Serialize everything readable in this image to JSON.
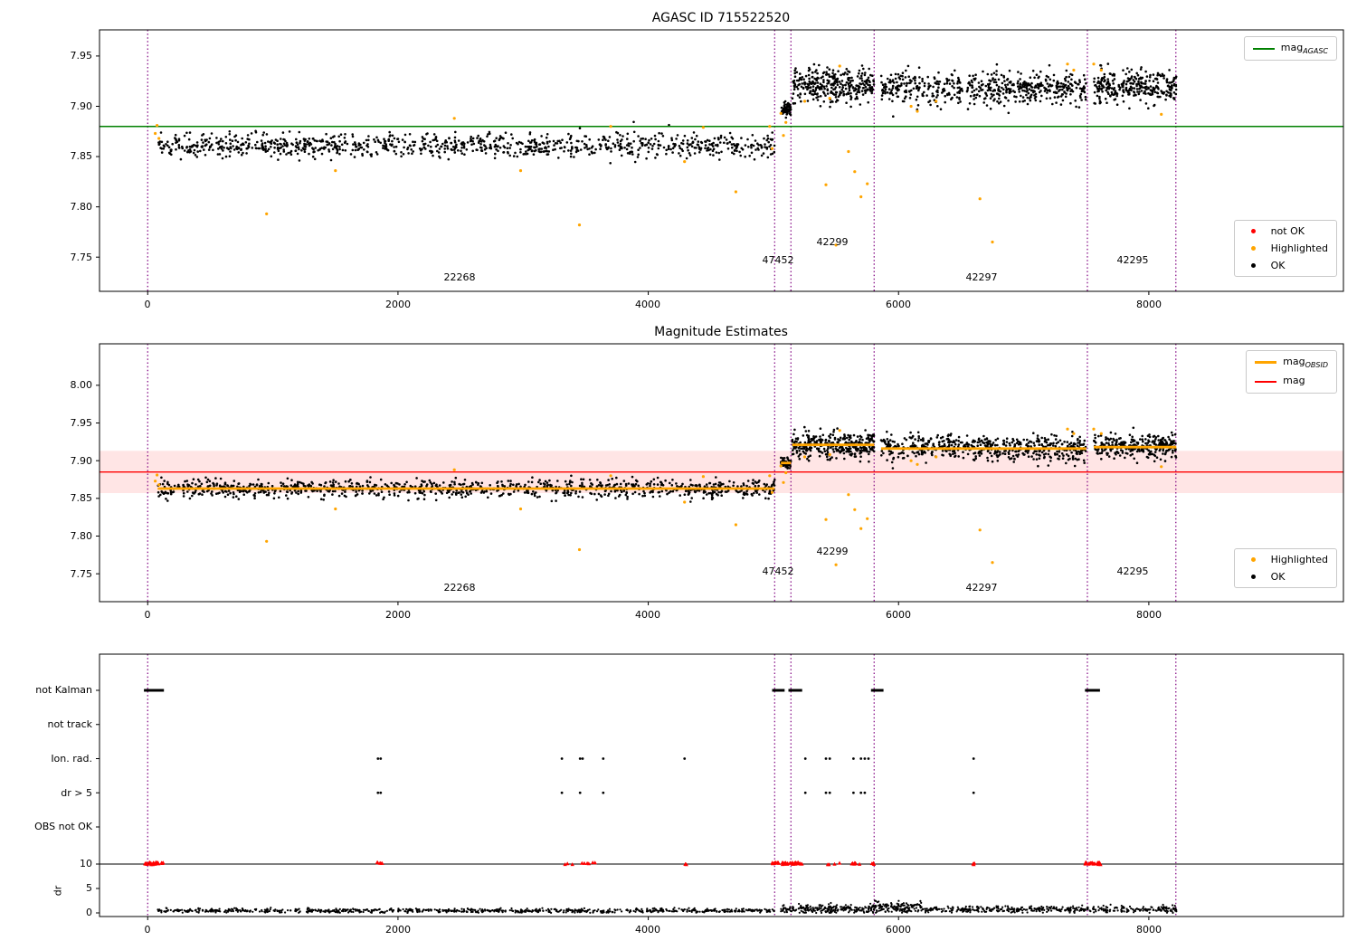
{
  "figure": {
    "top_title": "AGASC ID 715522520",
    "middle_title": "Magnitude Estimates"
  },
  "colors": {
    "ok": "#000000",
    "highlighted": "#ffa500",
    "not_ok": "#ff0000",
    "mag_agasc_line": "#008000",
    "mag_obsid_line": "#ffa500",
    "mag_line": "#ff0000",
    "obsid_boundary": "#800080"
  },
  "legends": {
    "top_line": {
      "main": "mag",
      "sub": "AGASC"
    },
    "top_markers": [
      "not OK",
      "Highlighted",
      "OK"
    ],
    "middle_line1": {
      "main": "mag",
      "sub": "OBSID"
    },
    "middle_line2": {
      "main": "mag",
      "sub": ""
    },
    "middle_markers": [
      "Highlighted",
      "OK"
    ]
  },
  "chart_data": [
    {
      "type": "scatter",
      "title": "AGASC ID 715522520",
      "xlim": [
        -385,
        9555
      ],
      "ylim": [
        7.716,
        7.976
      ],
      "xticks": [
        "0",
        "2000",
        "4000",
        "6000",
        "8000"
      ],
      "xtick_values": [
        0,
        2000,
        4000,
        6000,
        8000
      ],
      "yticks": [
        "7.75",
        "7.80",
        "7.85",
        "7.90",
        "7.95"
      ],
      "ytick_values": [
        7.75,
        7.8,
        7.85,
        7.9,
        7.95
      ],
      "mag_agasc": 7.88,
      "obsid_boundaries": [
        0,
        5010,
        5140,
        5805,
        7509,
        8216
      ],
      "obsid_labels": [
        {
          "text": "22268",
          "x": 2493
        },
        {
          "text": "47452",
          "x": 5036
        },
        {
          "text": "42299",
          "x": 5470
        },
        {
          "text": "42297",
          "x": 6662
        },
        {
          "text": "42295",
          "x": 7869
        }
      ],
      "ok_segments": [
        {
          "x0": 80,
          "x1": 5010,
          "mean": 7.861,
          "sd": 0.006,
          "n": 1000
        },
        {
          "x0": 5060,
          "x1": 5140,
          "mean": 7.897,
          "sd": 0.003,
          "n": 60
        },
        {
          "x0": 5150,
          "x1": 5805,
          "mean": 7.921,
          "sd": 0.009,
          "n": 330
        },
        {
          "x0": 5860,
          "x1": 7500,
          "mean": 7.918,
          "sd": 0.008,
          "n": 550
        },
        {
          "x0": 7560,
          "x1": 8220,
          "mean": 7.92,
          "sd": 0.008,
          "n": 300
        }
      ],
      "highlighted": [
        [
          60,
          7.873
        ],
        [
          75,
          7.881
        ],
        [
          90,
          7.868
        ],
        [
          950,
          7.793
        ],
        [
          1500,
          7.836
        ],
        [
          2450,
          7.888
        ],
        [
          2980,
          7.836
        ],
        [
          3450,
          7.782
        ],
        [
          3700,
          7.88
        ],
        [
          4290,
          7.845
        ],
        [
          4440,
          7.879
        ],
        [
          4700,
          7.815
        ],
        [
          4970,
          7.88
        ],
        [
          4990,
          7.858
        ],
        [
          5060,
          7.893
        ],
        [
          5080,
          7.871
        ],
        [
          5100,
          7.884
        ],
        [
          5250,
          7.905
        ],
        [
          5420,
          7.822
        ],
        [
          5450,
          7.908
        ],
        [
          5500,
          7.762
        ],
        [
          5530,
          7.94
        ],
        [
          5600,
          7.855
        ],
        [
          5650,
          7.835
        ],
        [
          5700,
          7.81
        ],
        [
          5750,
          7.823
        ],
        [
          6100,
          7.9
        ],
        [
          6150,
          7.895
        ],
        [
          6300,
          7.905
        ],
        [
          6650,
          7.808
        ],
        [
          6750,
          7.765
        ],
        [
          7350,
          7.942
        ],
        [
          7400,
          7.936
        ],
        [
          7560,
          7.942
        ],
        [
          7620,
          7.936
        ],
        [
          8100,
          7.892
        ]
      ],
      "not_ok": []
    },
    {
      "type": "scatter",
      "title": "Magnitude Estimates",
      "xlim": [
        -385,
        9555
      ],
      "ylim": [
        7.713,
        8.055
      ],
      "xticks": [
        "0",
        "2000",
        "4000",
        "6000",
        "8000"
      ],
      "xtick_values": [
        0,
        2000,
        4000,
        6000,
        8000
      ],
      "yticks": [
        "7.75",
        "7.80",
        "7.85",
        "7.90",
        "7.95",
        "8.00"
      ],
      "ytick_values": [
        7.75,
        7.8,
        7.85,
        7.9,
        7.95,
        8.0
      ],
      "mag": 7.885,
      "mag_band": [
        7.857,
        7.913
      ],
      "mag_obsid_segments": [
        [
          80,
          5010,
          7.863
        ],
        [
          5060,
          5140,
          7.897
        ],
        [
          5150,
          5805,
          7.921
        ],
        [
          5860,
          7500,
          7.916
        ],
        [
          7560,
          8220,
          7.918
        ]
      ],
      "obsid_boundaries": [
        0,
        5010,
        5140,
        5805,
        7509,
        8216
      ],
      "obsid_labels": [
        {
          "text": "22268",
          "x": 2493
        },
        {
          "text": "47452",
          "x": 5036
        },
        {
          "text": "42299",
          "x": 5470
        },
        {
          "text": "42297",
          "x": 6662
        },
        {
          "text": "42295",
          "x": 7869
        }
      ],
      "ok_segments": [
        {
          "x0": 80,
          "x1": 5010,
          "mean": 7.863,
          "sd": 0.006,
          "n": 1000
        },
        {
          "x0": 5060,
          "x1": 5140,
          "mean": 7.897,
          "sd": 0.003,
          "n": 60
        },
        {
          "x0": 5150,
          "x1": 5805,
          "mean": 7.921,
          "sd": 0.009,
          "n": 330
        },
        {
          "x0": 5860,
          "x1": 7500,
          "mean": 7.917,
          "sd": 0.008,
          "n": 550
        },
        {
          "x0": 7560,
          "x1": 8220,
          "mean": 7.919,
          "sd": 0.008,
          "n": 300
        }
      ],
      "highlighted": [
        [
          60,
          7.873
        ],
        [
          75,
          7.881
        ],
        [
          90,
          7.868
        ],
        [
          950,
          7.793
        ],
        [
          1500,
          7.836
        ],
        [
          2450,
          7.888
        ],
        [
          2980,
          7.836
        ],
        [
          3450,
          7.782
        ],
        [
          3700,
          7.88
        ],
        [
          4290,
          7.845
        ],
        [
          4440,
          7.879
        ],
        [
          4700,
          7.815
        ],
        [
          4970,
          7.88
        ],
        [
          4990,
          7.858
        ],
        [
          5060,
          7.893
        ],
        [
          5080,
          7.871
        ],
        [
          5100,
          7.884
        ],
        [
          5250,
          7.905
        ],
        [
          5420,
          7.822
        ],
        [
          5450,
          7.908
        ],
        [
          5500,
          7.762
        ],
        [
          5530,
          7.94
        ],
        [
          5600,
          7.855
        ],
        [
          5650,
          7.835
        ],
        [
          5700,
          7.81
        ],
        [
          5750,
          7.823
        ],
        [
          6100,
          7.9
        ],
        [
          6150,
          7.895
        ],
        [
          6300,
          7.905
        ],
        [
          6650,
          7.808
        ],
        [
          6750,
          7.765
        ],
        [
          7350,
          7.942
        ],
        [
          7400,
          7.936
        ],
        [
          7560,
          7.942
        ],
        [
          7620,
          7.936
        ],
        [
          8100,
          7.892
        ]
      ],
      "not_ok": []
    },
    {
      "type": "flags-and-dr",
      "xlim": [
        -385,
        9555
      ],
      "xticks": [
        "0",
        "2000",
        "4000",
        "6000",
        "8000"
      ],
      "xtick_values": [
        0,
        2000,
        4000,
        6000,
        8000
      ],
      "rows": [
        "not Kalman",
        "not track",
        "Ion. rad.",
        "dr > 5",
        "OBS not OK"
      ],
      "dr_label": "dr",
      "dr_ticks": [
        "10",
        "5",
        "0"
      ],
      "dr_tick_values": [
        10,
        5,
        0
      ],
      "dr_limit_line": 10,
      "obsid_boundaries": [
        0,
        5010,
        5140,
        5805,
        7509,
        8216
      ],
      "not_kalman_ranges": [
        [
          -30,
          130
        ],
        [
          4990,
          5090
        ],
        [
          5120,
          5230
        ],
        [
          5780,
          5880
        ],
        [
          7490,
          7610
        ]
      ],
      "not_track_x": [],
      "ion_rad_x": [
        1840,
        1862,
        3310,
        3455,
        3475,
        3640,
        4290,
        5255,
        5420,
        5450,
        5640,
        5700,
        5730,
        5760,
        6600
      ],
      "dr_gt5_x": [
        1840,
        1862,
        3310,
        3455,
        3640,
        5255,
        5420,
        5450,
        5640,
        5700,
        5730,
        6600
      ],
      "obs_not_ok_x": [],
      "dr_segments": [
        {
          "x0": 80,
          "x1": 5010,
          "mean": 0.45,
          "sd": 0.22,
          "n": 800
        },
        {
          "x0": 5060,
          "x1": 5805,
          "mean": 0.8,
          "sd": 0.45,
          "n": 220
        },
        {
          "x0": 5805,
          "x1": 6200,
          "mean": 1.2,
          "sd": 0.6,
          "n": 140
        },
        {
          "x0": 6200,
          "x1": 8220,
          "mean": 0.7,
          "sd": 0.35,
          "n": 420
        }
      ],
      "dr_clipped_ranges": [
        [
          -30,
          130,
          26
        ],
        [
          1830,
          1875,
          5
        ],
        [
          3300,
          3660,
          9
        ],
        [
          4280,
          4310,
          3
        ],
        [
          4990,
          5230,
          40
        ],
        [
          5390,
          5810,
          14
        ],
        [
          6590,
          6615,
          3
        ],
        [
          7490,
          7615,
          22
        ]
      ]
    }
  ]
}
